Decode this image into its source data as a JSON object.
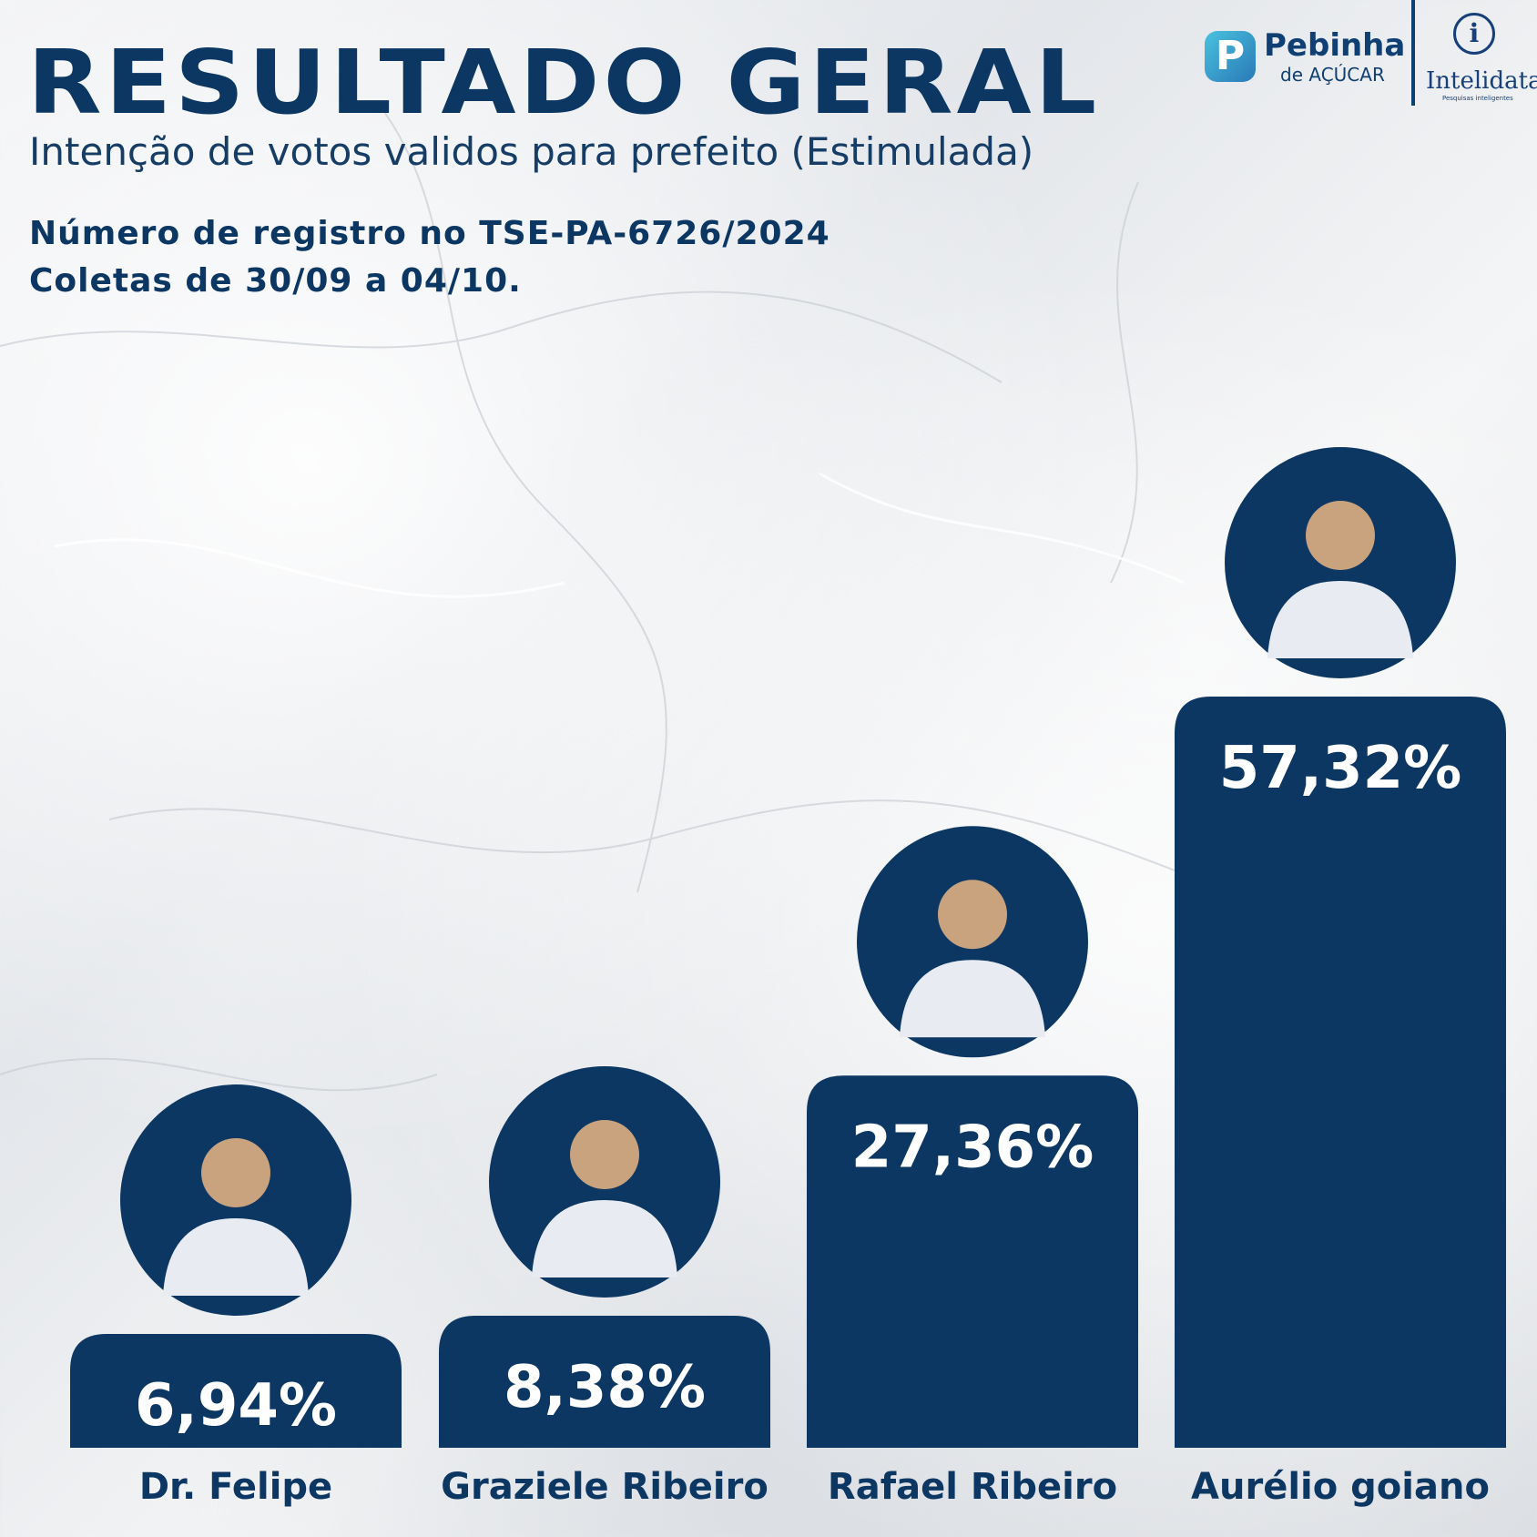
{
  "header": {
    "title": "RESULTADO GERAL",
    "subtitle": "Intenção de votos validos para prefeito (Estimulada)",
    "registration": "Número de registro no TSE-PA-6726/2024",
    "collection_period": "Coletas de 30/09 a 04/10."
  },
  "logos": {
    "pebinha_mark": "P",
    "pebinha_name": "Pebinha",
    "pebinha_sub": "de AÇÚCAR",
    "intelidata_mark": "i",
    "intelidata_name": "Intelidata",
    "intelidata_tagline": "Pesquisas inteligentes"
  },
  "chart_data": {
    "type": "bar",
    "title": "RESULTADO GERAL",
    "subtitle": "Intenção de votos validos para prefeito (Estimulada)",
    "categories": [
      "Dr. Felipe",
      "Graziele Ribeiro",
      "Rafael Ribeiro",
      "Aurélio goiano"
    ],
    "values": [
      6.94,
      8.38,
      27.36,
      57.32
    ],
    "value_labels": [
      "6,94%",
      "8,38%",
      "27,36%",
      "57,32%"
    ],
    "unit": "%",
    "ylim": [
      0,
      57.32
    ],
    "grid": false,
    "legend": "none",
    "bar_color": "#0c3763",
    "label_color": "#ffffff",
    "photo_placeholder": true
  }
}
